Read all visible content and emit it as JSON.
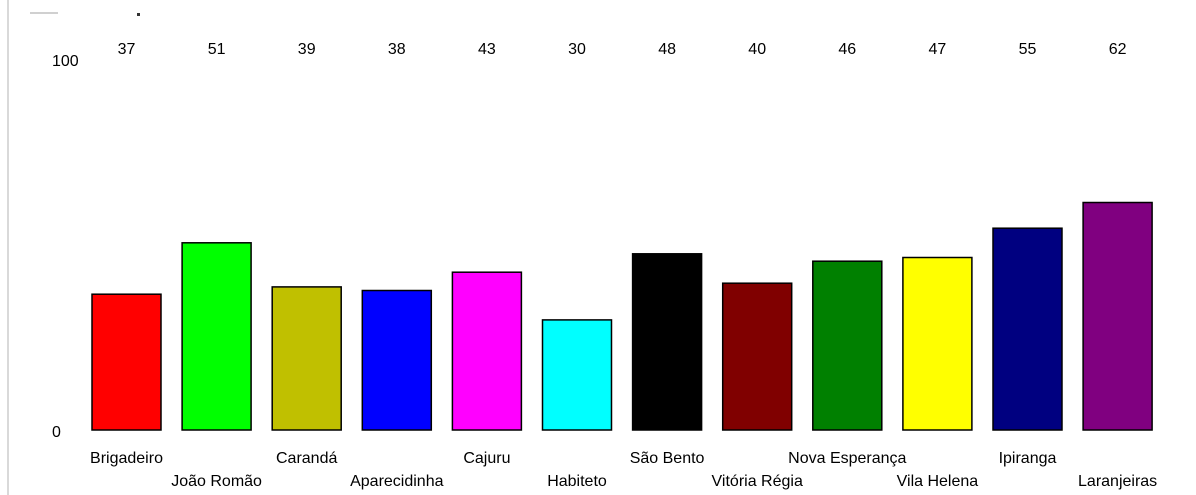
{
  "chart_data": {
    "type": "bar",
    "title": "",
    "xlabel": "",
    "ylabel": "",
    "ylim": [
      0,
      100
    ],
    "y_tick_labels": [
      "0",
      "100"
    ],
    "grid": false,
    "legend": "none",
    "categories": [
      "Brigadeiro",
      "João Romão",
      "Carandá",
      "Aparecidinha",
      "Cajuru",
      "Habiteto",
      "São Bento",
      "Vitória Régia",
      "Nova Esperança",
      "Vila Helena",
      "Ipiranga",
      "Laranjeiras"
    ],
    "values": [
      37,
      51,
      39,
      38,
      43,
      30,
      48,
      40,
      46,
      47,
      55,
      62
    ],
    "colors": [
      "#ff0000",
      "#00ff00",
      "#c0c000",
      "#0000ff",
      "#ff00ff",
      "#00ffff",
      "#000000",
      "#800000",
      "#008000",
      "#ffff00",
      "#000080",
      "#800080"
    ]
  }
}
